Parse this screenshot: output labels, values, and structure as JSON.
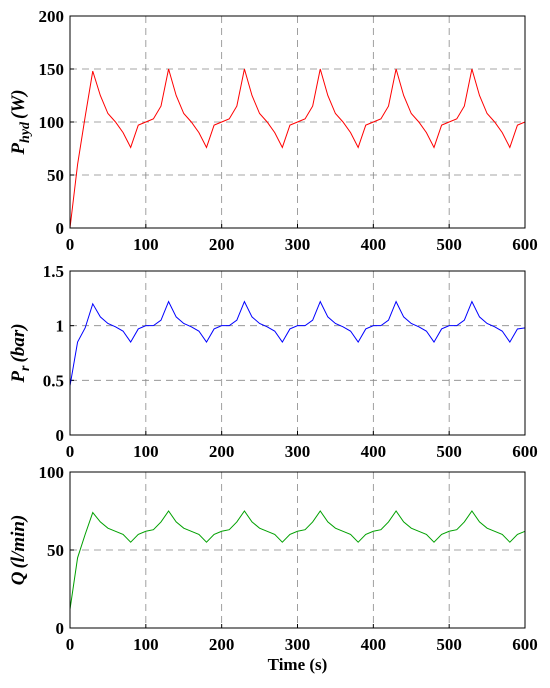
{
  "chart_data": [
    {
      "type": "line",
      "ylabel": "P",
      "ylabel_sub": "hyd",
      "ylabel_unit": "(W)",
      "x": [
        0,
        10,
        20,
        30,
        40,
        50,
        60,
        70,
        80,
        90,
        100,
        110,
        120,
        130,
        140,
        150,
        160,
        170,
        180,
        190,
        200,
        210,
        220,
        230,
        240,
        250,
        260,
        270,
        280,
        290,
        300,
        310,
        320,
        330,
        340,
        350,
        360,
        370,
        380,
        390,
        400,
        410,
        420,
        430,
        440,
        450,
        460,
        470,
        480,
        490,
        500,
        510,
        520,
        530,
        540,
        550,
        560,
        570,
        580,
        590,
        600
      ],
      "series": [
        {
          "color": "#ff0000",
          "values": [
            0,
            60,
            105,
            148,
            125,
            108,
            100,
            90,
            76,
            97,
            100,
            103,
            115,
            150,
            125,
            108,
            100,
            90,
            76,
            97,
            100,
            103,
            115,
            150,
            125,
            108,
            100,
            90,
            76,
            97,
            100,
            103,
            115,
            150,
            125,
            108,
            100,
            90,
            76,
            97,
            100,
            103,
            115,
            150,
            125,
            108,
            100,
            90,
            76,
            97,
            100,
            103,
            115,
            150,
            125,
            108,
            100,
            90,
            76,
            97,
            100
          ]
        }
      ],
      "xlim": [
        0,
        600
      ],
      "xticks": [
        0,
        100,
        200,
        300,
        400,
        500,
        600
      ],
      "ylim": [
        0,
        200
      ],
      "yticks": [
        0,
        50,
        100,
        150,
        200
      ],
      "grid": true
    },
    {
      "type": "line",
      "ylabel": "P",
      "ylabel_sub": "r",
      "ylabel_unit": "(bar)",
      "x": [
        0,
        10,
        20,
        30,
        40,
        50,
        60,
        70,
        80,
        90,
        100,
        110,
        120,
        130,
        140,
        150,
        160,
        170,
        180,
        190,
        200,
        210,
        220,
        230,
        240,
        250,
        260,
        270,
        280,
        290,
        300,
        310,
        320,
        330,
        340,
        350,
        360,
        370,
        380,
        390,
        400,
        410,
        420,
        430,
        440,
        450,
        460,
        470,
        480,
        490,
        500,
        510,
        520,
        530,
        540,
        550,
        560,
        570,
        580,
        590,
        600
      ],
      "series": [
        {
          "color": "#0000ff",
          "values": [
            0.45,
            0.85,
            0.98,
            1.2,
            1.08,
            1.02,
            0.99,
            0.95,
            0.85,
            0.97,
            1.0,
            1.0,
            1.05,
            1.22,
            1.08,
            1.02,
            0.99,
            0.95,
            0.85,
            0.97,
            1.0,
            1.0,
            1.05,
            1.22,
            1.08,
            1.02,
            0.99,
            0.95,
            0.85,
            0.97,
            1.0,
            1.0,
            1.05,
            1.22,
            1.08,
            1.02,
            0.99,
            0.95,
            0.85,
            0.97,
            1.0,
            1.0,
            1.05,
            1.22,
            1.08,
            1.02,
            0.99,
            0.95,
            0.85,
            0.97,
            1.0,
            1.0,
            1.05,
            1.22,
            1.08,
            1.02,
            0.99,
            0.95,
            0.85,
            0.97,
            0.98
          ]
        }
      ],
      "xlim": [
        0,
        600
      ],
      "xticks": [
        0,
        100,
        200,
        300,
        400,
        500,
        600
      ],
      "ylim": [
        0,
        1.5
      ],
      "yticks": [
        0,
        0.5,
        1,
        1.5
      ],
      "grid": true
    },
    {
      "type": "line",
      "ylabel": "Q",
      "ylabel_unit": "(l/min)",
      "xlabel": "Time (s)",
      "x": [
        0,
        10,
        20,
        30,
        40,
        50,
        60,
        70,
        80,
        90,
        100,
        110,
        120,
        130,
        140,
        150,
        160,
        170,
        180,
        190,
        200,
        210,
        220,
        230,
        240,
        250,
        260,
        270,
        280,
        290,
        300,
        310,
        320,
        330,
        340,
        350,
        360,
        370,
        380,
        390,
        400,
        410,
        420,
        430,
        440,
        450,
        460,
        470,
        480,
        490,
        500,
        510,
        520,
        530,
        540,
        550,
        560,
        570,
        580,
        590,
        600
      ],
      "series": [
        {
          "color": "#00a000",
          "values": [
            12,
            45,
            60,
            74,
            68,
            64,
            62,
            60,
            55,
            60,
            62,
            63,
            68,
            75,
            68,
            64,
            62,
            60,
            55,
            60,
            62,
            63,
            68,
            75,
            68,
            64,
            62,
            60,
            55,
            60,
            62,
            63,
            68,
            75,
            68,
            64,
            62,
            60,
            55,
            60,
            62,
            63,
            68,
            75,
            68,
            64,
            62,
            60,
            55,
            60,
            62,
            63,
            68,
            75,
            68,
            64,
            62,
            60,
            55,
            60,
            62
          ]
        }
      ],
      "xlim": [
        0,
        600
      ],
      "xticks": [
        0,
        100,
        200,
        300,
        400,
        500,
        600
      ],
      "ylim": [
        0,
        100
      ],
      "yticks": [
        0,
        50,
        100
      ],
      "grid": true
    }
  ]
}
